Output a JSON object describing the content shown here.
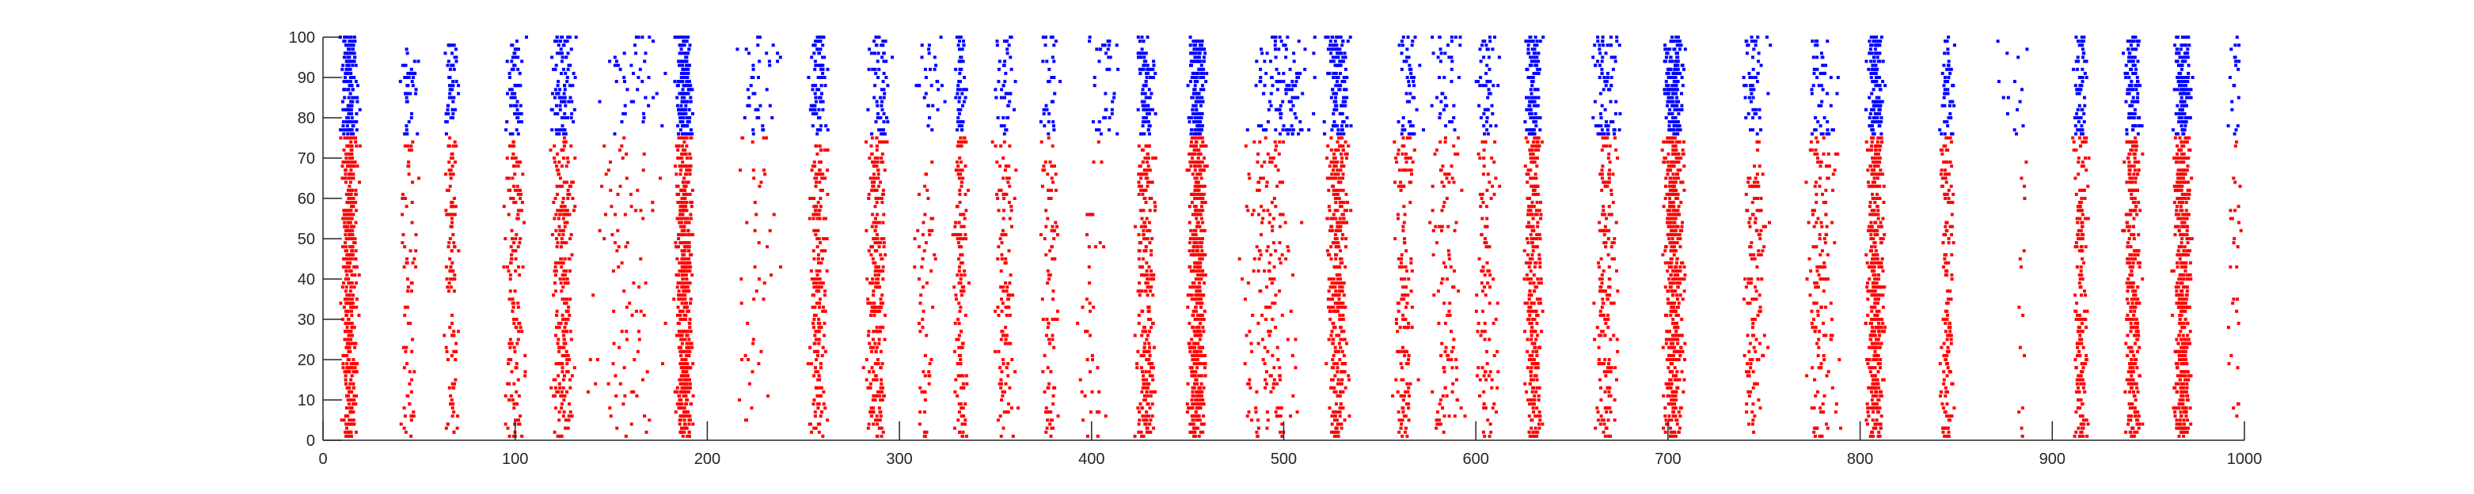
{
  "chart_data": {
    "type": "scatter",
    "title": "",
    "xlabel": "",
    "ylabel": "",
    "xlim": [
      0,
      1000
    ],
    "ylim": [
      0,
      100
    ],
    "xticks": [
      0,
      100,
      200,
      300,
      400,
      500,
      600,
      700,
      800,
      900,
      1000
    ],
    "yticks": [
      0,
      10,
      20,
      30,
      40,
      50,
      60,
      70,
      80,
      90,
      100
    ],
    "grid": false,
    "legend": "none",
    "marker": "dot",
    "series": [
      {
        "neurons": [
          1,
          75
        ],
        "color": "#ff0000",
        "bursts": [
          {
            "t": 14,
            "w": 6,
            "n": 420
          },
          {
            "t": 45,
            "w": 6,
            "n": 70
          },
          {
            "t": 67,
            "w": 5,
            "n": 110
          },
          {
            "t": 100,
            "w": 7,
            "n": 140
          },
          {
            "t": 125,
            "w": 8,
            "n": 230
          },
          {
            "t": 157,
            "w": 25,
            "n": 90
          },
          {
            "t": 188,
            "w": 6,
            "n": 460
          },
          {
            "t": 225,
            "w": 15,
            "n": 45
          },
          {
            "t": 258,
            "w": 6,
            "n": 190
          },
          {
            "t": 288,
            "w": 7,
            "n": 250
          },
          {
            "t": 313,
            "w": 7,
            "n": 60
          },
          {
            "t": 332,
            "w": 5,
            "n": 140
          },
          {
            "t": 355,
            "w": 7,
            "n": 120
          },
          {
            "t": 378,
            "w": 6,
            "n": 90
          },
          {
            "t": 400,
            "w": 9,
            "n": 40
          },
          {
            "t": 428,
            "w": 7,
            "n": 240
          },
          {
            "t": 455,
            "w": 6,
            "n": 480
          },
          {
            "t": 493,
            "w": 20,
            "n": 180
          },
          {
            "t": 528,
            "w": 8,
            "n": 340
          },
          {
            "t": 563,
            "w": 8,
            "n": 140
          },
          {
            "t": 585,
            "w": 12,
            "n": 110
          },
          {
            "t": 606,
            "w": 9,
            "n": 100
          },
          {
            "t": 630,
            "w": 6,
            "n": 300
          },
          {
            "t": 668,
            "w": 8,
            "n": 180
          },
          {
            "t": 703,
            "w": 7,
            "n": 460
          },
          {
            "t": 745,
            "w": 8,
            "n": 130
          },
          {
            "t": 780,
            "w": 11,
            "n": 150
          },
          {
            "t": 808,
            "w": 6,
            "n": 380
          },
          {
            "t": 845,
            "w": 5,
            "n": 160
          },
          {
            "t": 884,
            "w": 4,
            "n": 15
          },
          {
            "t": 915,
            "w": 5,
            "n": 180
          },
          {
            "t": 942,
            "w": 6,
            "n": 280
          },
          {
            "t": 968,
            "w": 6,
            "n": 420
          },
          {
            "t": 995,
            "w": 5,
            "n": 30
          }
        ]
      },
      {
        "neurons": [
          76,
          100
        ],
        "color": "#0000ff",
        "bursts": [
          {
            "t": 14,
            "w": 6,
            "n": 150
          },
          {
            "t": 45,
            "w": 6,
            "n": 40
          },
          {
            "t": 67,
            "w": 5,
            "n": 50
          },
          {
            "t": 100,
            "w": 7,
            "n": 60
          },
          {
            "t": 125,
            "w": 8,
            "n": 100
          },
          {
            "t": 160,
            "w": 22,
            "n": 45
          },
          {
            "t": 188,
            "w": 6,
            "n": 160
          },
          {
            "t": 225,
            "w": 18,
            "n": 40
          },
          {
            "t": 258,
            "w": 6,
            "n": 80
          },
          {
            "t": 290,
            "w": 8,
            "n": 60
          },
          {
            "t": 315,
            "w": 10,
            "n": 30
          },
          {
            "t": 332,
            "w": 5,
            "n": 50
          },
          {
            "t": 355,
            "w": 8,
            "n": 45
          },
          {
            "t": 378,
            "w": 8,
            "n": 35
          },
          {
            "t": 408,
            "w": 14,
            "n": 40
          },
          {
            "t": 428,
            "w": 7,
            "n": 90
          },
          {
            "t": 455,
            "w": 6,
            "n": 170
          },
          {
            "t": 500,
            "w": 20,
            "n": 120
          },
          {
            "t": 528,
            "w": 8,
            "n": 130
          },
          {
            "t": 565,
            "w": 9,
            "n": 50
          },
          {
            "t": 585,
            "w": 12,
            "n": 40
          },
          {
            "t": 606,
            "w": 9,
            "n": 50
          },
          {
            "t": 630,
            "w": 6,
            "n": 110
          },
          {
            "t": 668,
            "w": 10,
            "n": 80
          },
          {
            "t": 703,
            "w": 7,
            "n": 170
          },
          {
            "t": 745,
            "w": 10,
            "n": 55
          },
          {
            "t": 780,
            "w": 12,
            "n": 50
          },
          {
            "t": 808,
            "w": 6,
            "n": 140
          },
          {
            "t": 845,
            "w": 5,
            "n": 50
          },
          {
            "t": 880,
            "w": 14,
            "n": 15
          },
          {
            "t": 915,
            "w": 5,
            "n": 60
          },
          {
            "t": 942,
            "w": 6,
            "n": 90
          },
          {
            "t": 968,
            "w": 6,
            "n": 150
          },
          {
            "t": 995,
            "w": 5,
            "n": 20
          }
        ]
      }
    ]
  }
}
